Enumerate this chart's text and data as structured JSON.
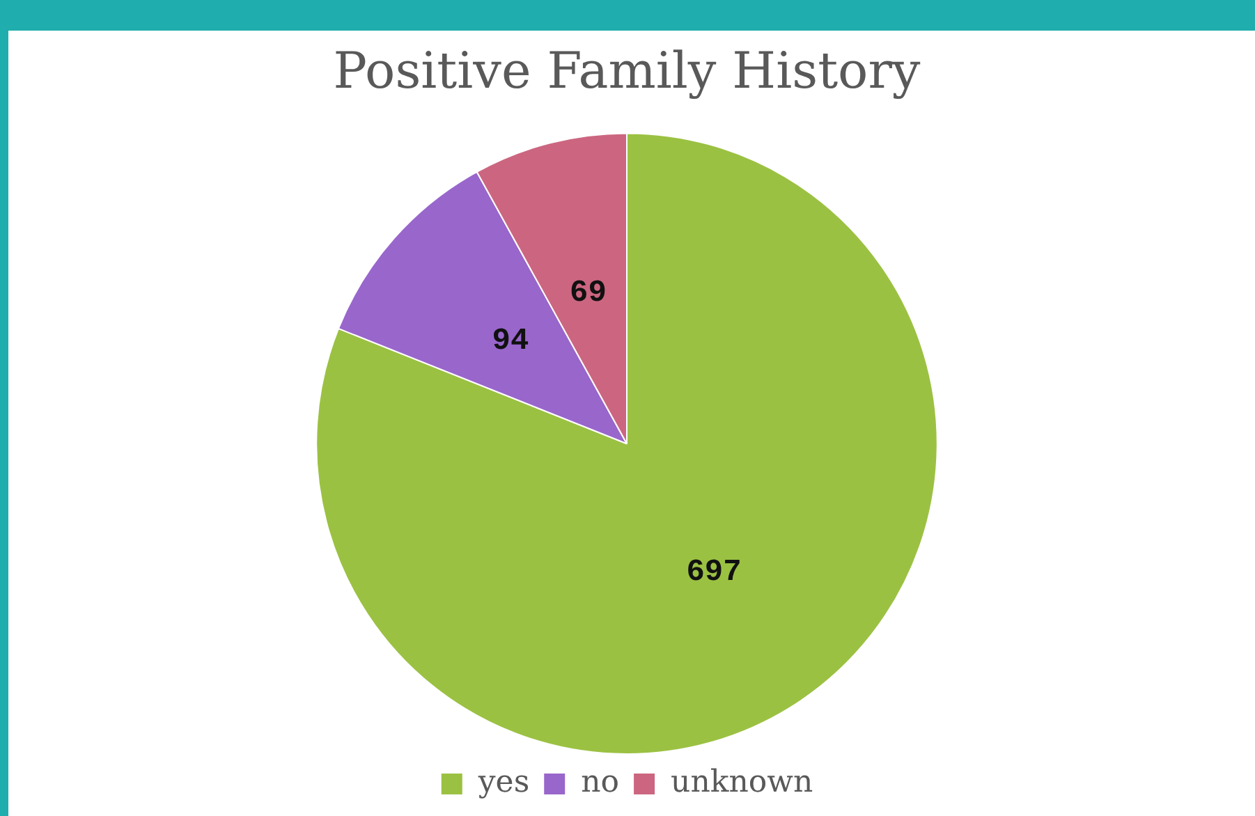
{
  "chart_data": {
    "type": "pie",
    "title": "Positive Family History",
    "categories": [
      "yes",
      "no",
      "unknown"
    ],
    "values": [
      697,
      94,
      69
    ],
    "colors": [
      "#9bc142",
      "#9966cc",
      "#cc6680"
    ],
    "data_labels": true,
    "legend": "bottom"
  }
}
